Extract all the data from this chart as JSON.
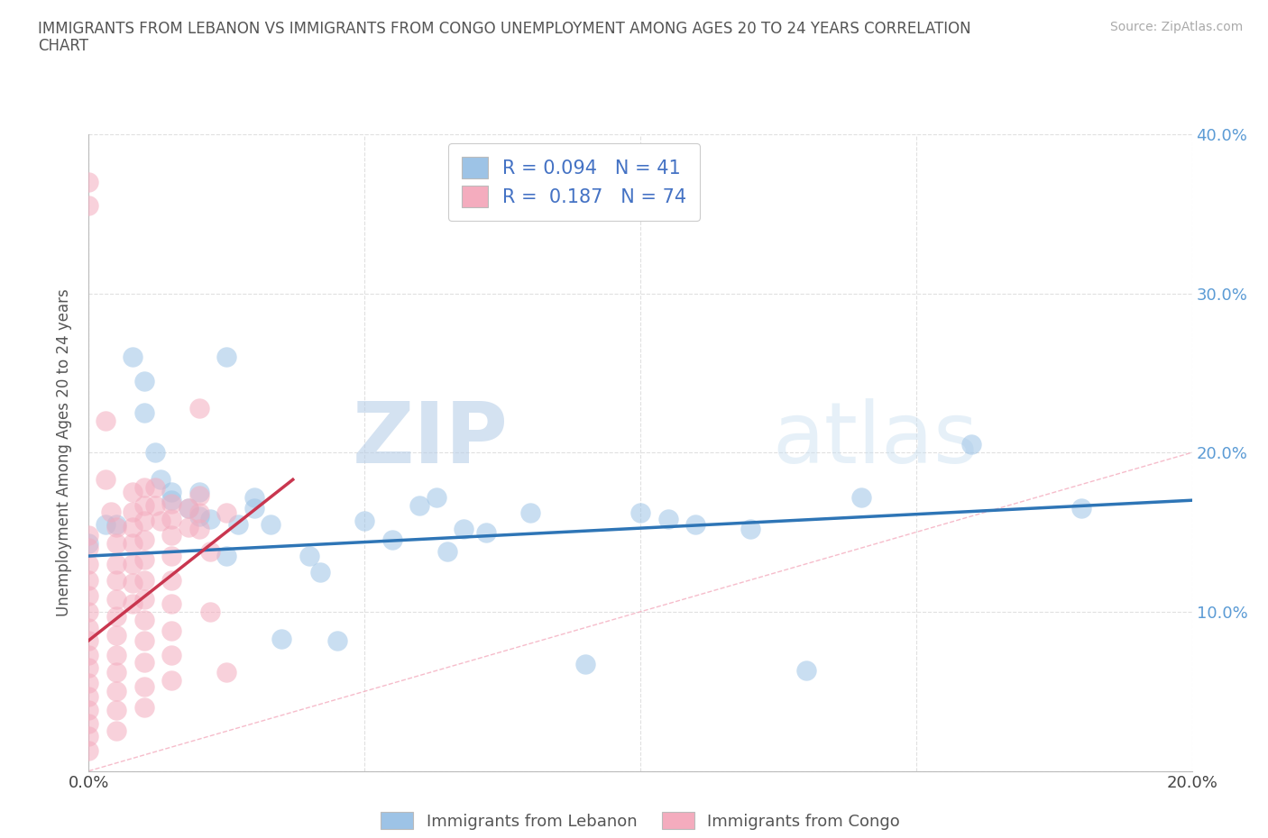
{
  "title_line1": "IMMIGRANTS FROM LEBANON VS IMMIGRANTS FROM CONGO UNEMPLOYMENT AMONG AGES 20 TO 24 YEARS CORRELATION",
  "title_line2": "CHART",
  "source_text": "Source: ZipAtlas.com",
  "ylabel": "Unemployment Among Ages 20 to 24 years",
  "watermark": "ZIPatlas",
  "legend_entry_1": "R = 0.094   N = 41",
  "legend_entry_2": "R =  0.187   N = 74",
  "legend_label_lebanon": "Immigrants from Lebanon",
  "legend_label_congo": "Immigrants from Congo",
  "xlim": [
    0,
    0.2
  ],
  "ylim": [
    0,
    0.4
  ],
  "xticks": [
    0.0,
    0.05,
    0.1,
    0.15,
    0.2
  ],
  "yticks": [
    0.0,
    0.1,
    0.2,
    0.3,
    0.4
  ],
  "lebanon_color": "#9dc3e6",
  "congo_color": "#f4acbe",
  "lebanon_line_color": "#2e75b6",
  "congo_line_color": "#c9364f",
  "ref_line_color": "#f4acbe",
  "grid_color": "#e0e0e0",
  "lebanon_scatter": [
    [
      0.0,
      0.143
    ],
    [
      0.003,
      0.155
    ],
    [
      0.005,
      0.155
    ],
    [
      0.008,
      0.26
    ],
    [
      0.01,
      0.245
    ],
    [
      0.01,
      0.225
    ],
    [
      0.012,
      0.2
    ],
    [
      0.013,
      0.183
    ],
    [
      0.015,
      0.175
    ],
    [
      0.015,
      0.17
    ],
    [
      0.018,
      0.165
    ],
    [
      0.02,
      0.175
    ],
    [
      0.02,
      0.16
    ],
    [
      0.022,
      0.158
    ],
    [
      0.025,
      0.26
    ],
    [
      0.025,
      0.135
    ],
    [
      0.027,
      0.155
    ],
    [
      0.03,
      0.172
    ],
    [
      0.03,
      0.165
    ],
    [
      0.033,
      0.155
    ],
    [
      0.035,
      0.083
    ],
    [
      0.04,
      0.135
    ],
    [
      0.042,
      0.125
    ],
    [
      0.045,
      0.082
    ],
    [
      0.05,
      0.157
    ],
    [
      0.055,
      0.145
    ],
    [
      0.06,
      0.167
    ],
    [
      0.063,
      0.172
    ],
    [
      0.065,
      0.138
    ],
    [
      0.068,
      0.152
    ],
    [
      0.072,
      0.15
    ],
    [
      0.08,
      0.162
    ],
    [
      0.09,
      0.067
    ],
    [
      0.1,
      0.162
    ],
    [
      0.105,
      0.158
    ],
    [
      0.11,
      0.155
    ],
    [
      0.12,
      0.152
    ],
    [
      0.13,
      0.063
    ],
    [
      0.14,
      0.172
    ],
    [
      0.16,
      0.205
    ],
    [
      0.18,
      0.165
    ]
  ],
  "congo_scatter": [
    [
      0.0,
      0.37
    ],
    [
      0.0,
      0.355
    ],
    [
      0.0,
      0.148
    ],
    [
      0.0,
      0.14
    ],
    [
      0.0,
      0.13
    ],
    [
      0.0,
      0.12
    ],
    [
      0.0,
      0.11
    ],
    [
      0.0,
      0.1
    ],
    [
      0.0,
      0.09
    ],
    [
      0.0,
      0.082
    ],
    [
      0.0,
      0.073
    ],
    [
      0.0,
      0.065
    ],
    [
      0.0,
      0.055
    ],
    [
      0.0,
      0.047
    ],
    [
      0.0,
      0.038
    ],
    [
      0.0,
      0.03
    ],
    [
      0.0,
      0.022
    ],
    [
      0.0,
      0.013
    ],
    [
      0.003,
      0.22
    ],
    [
      0.003,
      0.183
    ],
    [
      0.004,
      0.163
    ],
    [
      0.005,
      0.153
    ],
    [
      0.005,
      0.143
    ],
    [
      0.005,
      0.13
    ],
    [
      0.005,
      0.12
    ],
    [
      0.005,
      0.108
    ],
    [
      0.005,
      0.097
    ],
    [
      0.005,
      0.085
    ],
    [
      0.005,
      0.073
    ],
    [
      0.005,
      0.062
    ],
    [
      0.005,
      0.05
    ],
    [
      0.005,
      0.038
    ],
    [
      0.005,
      0.025
    ],
    [
      0.008,
      0.175
    ],
    [
      0.008,
      0.163
    ],
    [
      0.008,
      0.153
    ],
    [
      0.008,
      0.143
    ],
    [
      0.008,
      0.13
    ],
    [
      0.008,
      0.118
    ],
    [
      0.008,
      0.105
    ],
    [
      0.01,
      0.178
    ],
    [
      0.01,
      0.167
    ],
    [
      0.01,
      0.157
    ],
    [
      0.01,
      0.145
    ],
    [
      0.01,
      0.133
    ],
    [
      0.01,
      0.12
    ],
    [
      0.01,
      0.108
    ],
    [
      0.01,
      0.095
    ],
    [
      0.01,
      0.082
    ],
    [
      0.01,
      0.068
    ],
    [
      0.01,
      0.053
    ],
    [
      0.01,
      0.04
    ],
    [
      0.012,
      0.178
    ],
    [
      0.012,
      0.167
    ],
    [
      0.013,
      0.157
    ],
    [
      0.015,
      0.168
    ],
    [
      0.015,
      0.158
    ],
    [
      0.015,
      0.148
    ],
    [
      0.015,
      0.135
    ],
    [
      0.015,
      0.12
    ],
    [
      0.015,
      0.105
    ],
    [
      0.015,
      0.088
    ],
    [
      0.015,
      0.073
    ],
    [
      0.015,
      0.057
    ],
    [
      0.018,
      0.165
    ],
    [
      0.018,
      0.153
    ],
    [
      0.02,
      0.228
    ],
    [
      0.02,
      0.173
    ],
    [
      0.02,
      0.162
    ],
    [
      0.02,
      0.152
    ],
    [
      0.022,
      0.138
    ],
    [
      0.022,
      0.1
    ],
    [
      0.025,
      0.162
    ],
    [
      0.025,
      0.062
    ]
  ],
  "leb_trend": [
    0.0,
    0.2,
    0.135,
    0.17
  ],
  "congo_trend_x": [
    0.0,
    0.037
  ],
  "congo_trend_y": [
    0.082,
    0.183
  ]
}
